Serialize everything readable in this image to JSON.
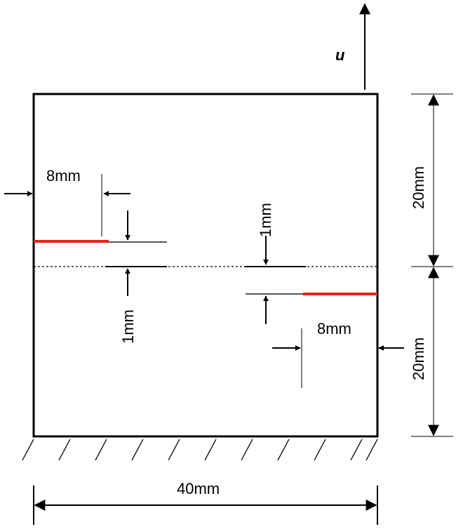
{
  "diagram": {
    "load_label": "u",
    "dimensions": {
      "crack_length_top": "8mm",
      "crack_length_bottom": "8mm",
      "offset_top": "1mm",
      "offset_bottom": "1mm",
      "height_upper": "20mm",
      "height_lower": "20mm",
      "width": "40mm"
    },
    "colors": {
      "outline": "#000000",
      "crack": "#e8201e",
      "dimension_line": "#808080"
    }
  }
}
